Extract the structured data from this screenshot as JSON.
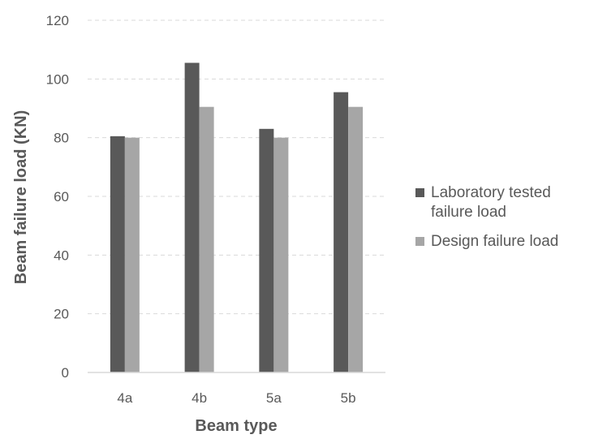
{
  "chart_data": {
    "type": "bar",
    "title": "",
    "xlabel": "Beam type",
    "ylabel": "Beam failure load (KN)",
    "categories": [
      "4a",
      "4b",
      "5a",
      "5b"
    ],
    "ylim": [
      0,
      120
    ],
    "yticks": [
      "0",
      "20",
      "40",
      "60",
      "80",
      "100",
      "120"
    ],
    "grid": true,
    "legend_position": "right",
    "series": [
      {
        "name": "Laboratory tested failure load",
        "values": [
          80.5,
          105.5,
          83,
          95.5
        ],
        "color": "#595959"
      },
      {
        "name": "Design failure load",
        "values": [
          80,
          90.5,
          80,
          90.5
        ],
        "color": "#a6a6a6"
      }
    ]
  }
}
